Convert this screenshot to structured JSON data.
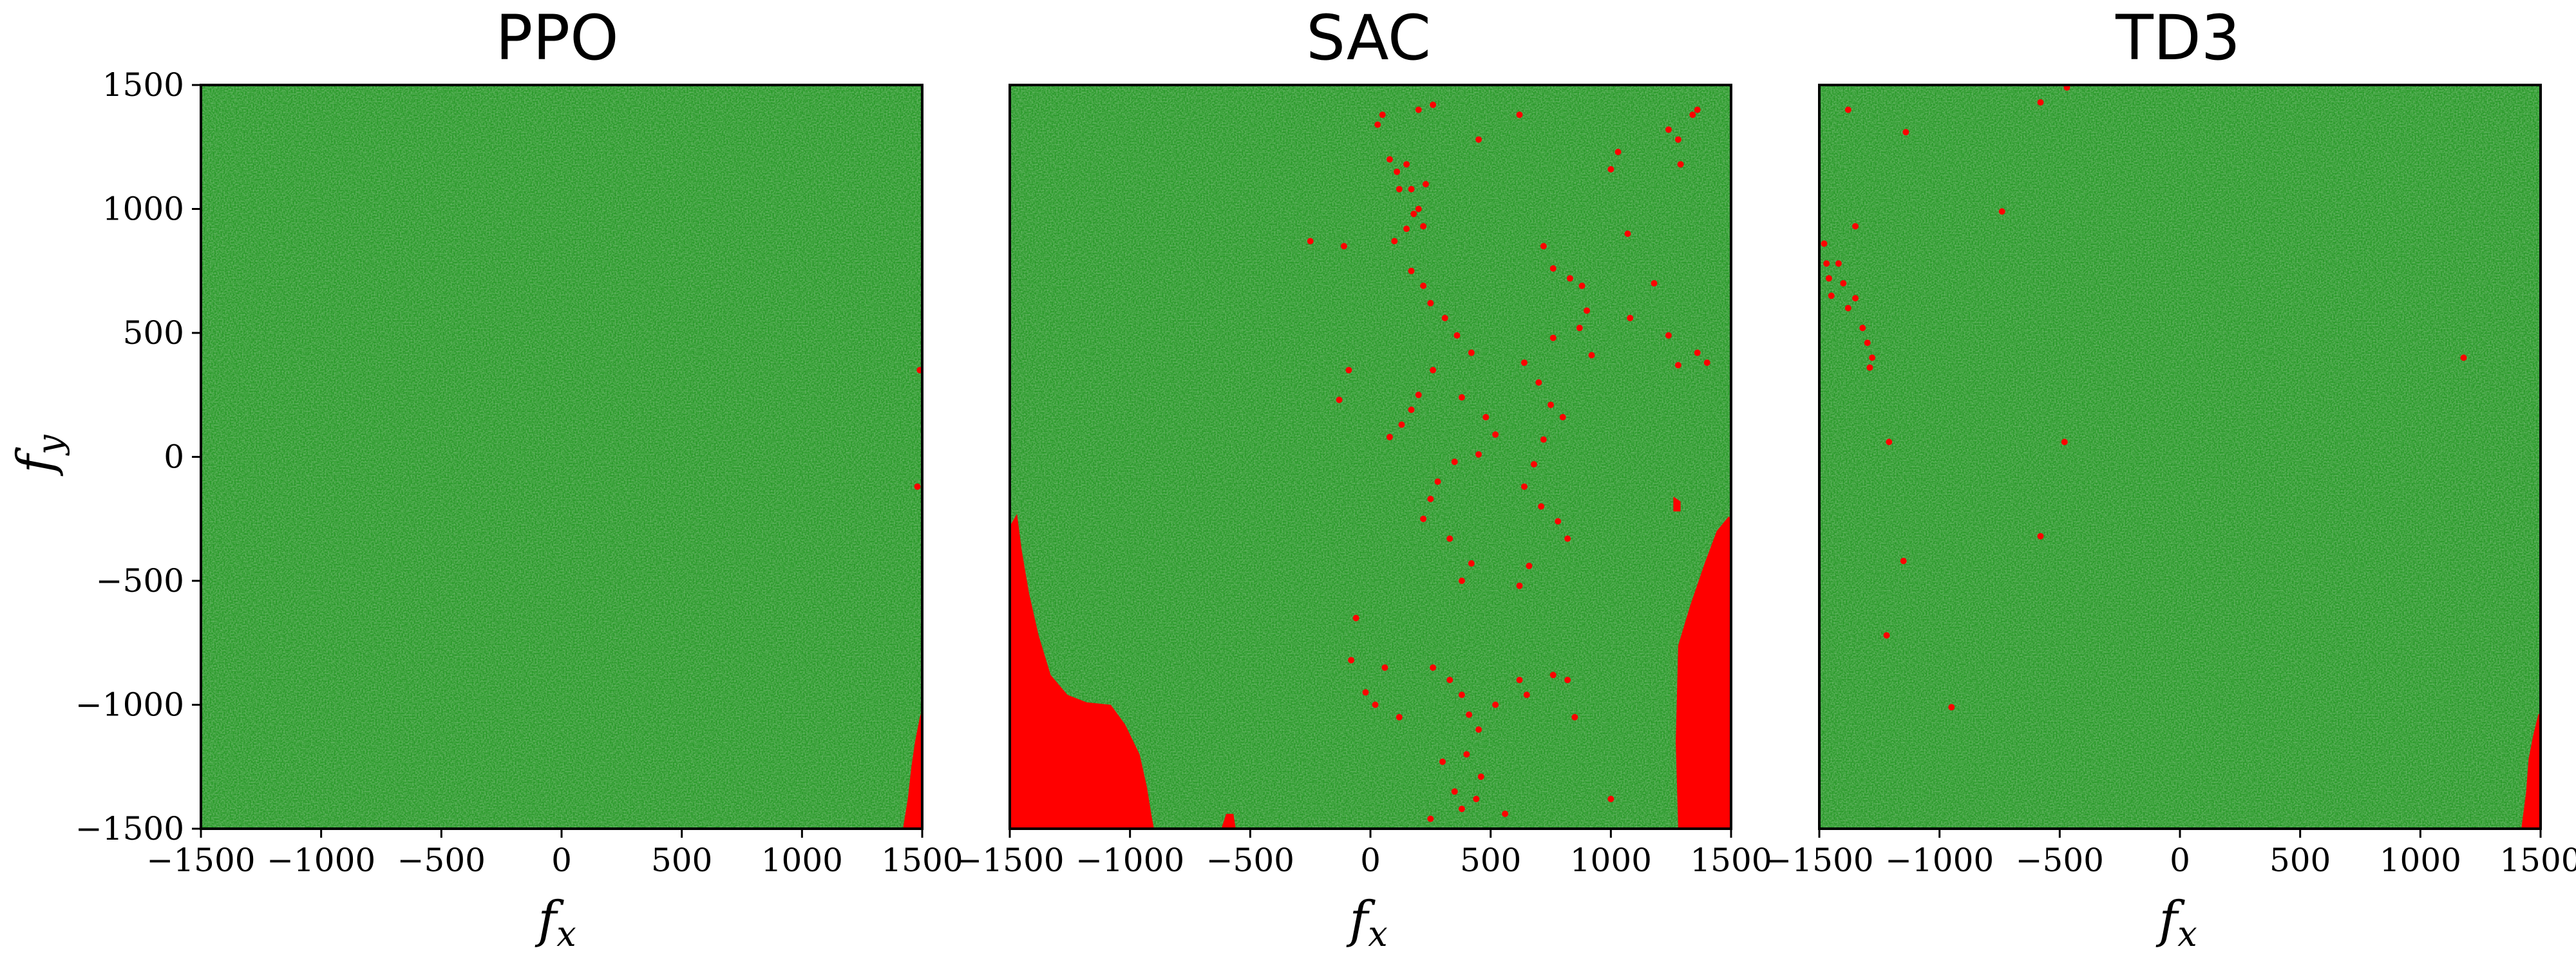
{
  "colors": {
    "success": "#2a9a2a",
    "failure": "#ff0000",
    "axis": "#000000"
  },
  "chart_data": [
    {
      "type": "scatter",
      "title": "PPO",
      "xlabel": "f_x",
      "ylabel": "f_y",
      "xlim": [
        -1500,
        1500
      ],
      "ylim": [
        -1500,
        1500
      ],
      "xticks": [
        "−1500",
        "−1000",
        "−500",
        "0",
        "500",
        "1000",
        "1500"
      ],
      "yticks": [
        "−1500",
        "−1000",
        "−500",
        "0",
        "500",
        "1000",
        "1500"
      ],
      "grid": false,
      "failure_regions": [
        [
          [
            1420,
            -1500
          ],
          [
            1440,
            -1380
          ],
          [
            1455,
            -1250
          ],
          [
            1470,
            -1150
          ],
          [
            1490,
            -1050
          ],
          [
            1500,
            -1020
          ],
          [
            1500,
            -1500
          ]
        ]
      ],
      "failure_points": [
        [
          1490,
          350
        ],
        [
          1480,
          -120
        ]
      ]
    },
    {
      "type": "scatter",
      "title": "SAC",
      "xlabel": "f_x",
      "ylabel": "",
      "xlim": [
        -1500,
        1500
      ],
      "ylim": [
        -1500,
        1500
      ],
      "xticks": [
        "−1500",
        "−1000",
        "−500",
        "0",
        "500",
        "1000",
        "1500"
      ],
      "yticks": [],
      "grid": false,
      "failure_regions": [
        [
          [
            -1500,
            -1500
          ],
          [
            -1500,
            -280
          ],
          [
            -1470,
            -230
          ],
          [
            -1450,
            -380
          ],
          [
            -1420,
            -550
          ],
          [
            -1380,
            -720
          ],
          [
            -1330,
            -880
          ],
          [
            -1260,
            -960
          ],
          [
            -1180,
            -990
          ],
          [
            -1080,
            -1000
          ],
          [
            -1020,
            -1080
          ],
          [
            -960,
            -1200
          ],
          [
            -930,
            -1330
          ],
          [
            -910,
            -1450
          ],
          [
            -900,
            -1500
          ]
        ],
        [
          [
            1280,
            -1500
          ],
          [
            1270,
            -1150
          ],
          [
            1280,
            -760
          ],
          [
            1330,
            -600
          ],
          [
            1390,
            -430
          ],
          [
            1440,
            -300
          ],
          [
            1490,
            -240
          ],
          [
            1500,
            -250
          ],
          [
            1500,
            -1500
          ]
        ],
        [
          [
            -620,
            -1500
          ],
          [
            -600,
            -1440
          ],
          [
            -570,
            -1440
          ],
          [
            -560,
            -1500
          ]
        ],
        [
          [
            1260,
            -160
          ],
          [
            1290,
            -180
          ],
          [
            1290,
            -220
          ],
          [
            1260,
            -220
          ]
        ]
      ],
      "failure_points": [
        [
          50,
          1380
        ],
        [
          30,
          1340
        ],
        [
          200,
          1400
        ],
        [
          260,
          1420
        ],
        [
          450,
          1280
        ],
        [
          620,
          1380
        ],
        [
          1240,
          1320
        ],
        [
          1280,
          1280
        ],
        [
          1290,
          1180
        ],
        [
          1340,
          1380
        ],
        [
          1360,
          1400
        ],
        [
          80,
          1200
        ],
        [
          110,
          1150
        ],
        [
          150,
          1180
        ],
        [
          170,
          1080
        ],
        [
          120,
          1080
        ],
        [
          180,
          980
        ],
        [
          220,
          930
        ],
        [
          150,
          920
        ],
        [
          100,
          870
        ],
        [
          200,
          1000
        ],
        [
          230,
          1100
        ],
        [
          -250,
          870
        ],
        [
          -110,
          850
        ],
        [
          170,
          750
        ],
        [
          220,
          690
        ],
        [
          250,
          620
        ],
        [
          310,
          560
        ],
        [
          360,
          490
        ],
        [
          420,
          420
        ],
        [
          260,
          350
        ],
        [
          200,
          250
        ],
        [
          170,
          190
        ],
        [
          130,
          130
        ],
        [
          80,
          80
        ],
        [
          -90,
          350
        ],
        [
          -130,
          230
        ],
        [
          380,
          240
        ],
        [
          480,
          160
        ],
        [
          520,
          90
        ],
        [
          450,
          10
        ],
        [
          350,
          -20
        ],
        [
          280,
          -100
        ],
        [
          250,
          -170
        ],
        [
          220,
          -250
        ],
        [
          330,
          -330
        ],
        [
          420,
          -430
        ],
        [
          380,
          -500
        ],
        [
          640,
          380
        ],
        [
          700,
          300
        ],
        [
          750,
          210
        ],
        [
          800,
          160
        ],
        [
          720,
          70
        ],
        [
          680,
          -30
        ],
        [
          640,
          -120
        ],
        [
          710,
          -200
        ],
        [
          780,
          -260
        ],
        [
          820,
          -330
        ],
        [
          660,
          -440
        ],
        [
          620,
          -520
        ],
        [
          720,
          850
        ],
        [
          760,
          760
        ],
        [
          830,
          720
        ],
        [
          880,
          690
        ],
        [
          900,
          590
        ],
        [
          870,
          520
        ],
        [
          760,
          480
        ],
        [
          920,
          410
        ],
        [
          1000,
          1160
        ],
        [
          1030,
          1230
        ],
        [
          1070,
          900
        ],
        [
          1080,
          560
        ],
        [
          1180,
          700
        ],
        [
          1240,
          490
        ],
        [
          1280,
          370
        ],
        [
          1360,
          420
        ],
        [
          1400,
          380
        ],
        [
          -60,
          -650
        ],
        [
          -80,
          -820
        ],
        [
          -20,
          -950
        ],
        [
          20,
          -1000
        ],
        [
          60,
          -850
        ],
        [
          120,
          -1050
        ],
        [
          260,
          -850
        ],
        [
          330,
          -900
        ],
        [
          380,
          -960
        ],
        [
          410,
          -1040
        ],
        [
          450,
          -1100
        ],
        [
          400,
          -1200
        ],
        [
          460,
          -1290
        ],
        [
          350,
          -1350
        ],
        [
          250,
          -1460
        ],
        [
          380,
          -1420
        ],
        [
          560,
          -1440
        ],
        [
          440,
          -1380
        ],
        [
          520,
          -1000
        ],
        [
          620,
          -900
        ],
        [
          650,
          -960
        ],
        [
          760,
          -880
        ],
        [
          820,
          -900
        ],
        [
          850,
          -1050
        ],
        [
          1000,
          -1380
        ],
        [
          300,
          -1230
        ]
      ]
    },
    {
      "type": "scatter",
      "title": "TD3",
      "xlabel": "f_x",
      "ylabel": "",
      "xlim": [
        -1500,
        1500
      ],
      "ylim": [
        -1500,
        1500
      ],
      "xticks": [
        "−1500",
        "−1000",
        "−500",
        "0",
        "500",
        "1000",
        "1500"
      ],
      "yticks": [],
      "grid": false,
      "failure_regions": [
        [
          [
            1420,
            -1500
          ],
          [
            1440,
            -1350
          ],
          [
            1450,
            -1220
          ],
          [
            1470,
            -1120
          ],
          [
            1490,
            -1040
          ],
          [
            1500,
            -1030
          ],
          [
            1500,
            -1500
          ]
        ]
      ],
      "failure_points": [
        [
          -1480,
          860
        ],
        [
          -1470,
          780
        ],
        [
          -1460,
          720
        ],
        [
          -1450,
          650
        ],
        [
          -1420,
          780
        ],
        [
          -1400,
          700
        ],
        [
          -1380,
          600
        ],
        [
          -1350,
          640
        ],
        [
          -1320,
          520
        ],
        [
          -1300,
          460
        ],
        [
          -1290,
          360
        ],
        [
          -1280,
          400
        ],
        [
          -1350,
          930
        ],
        [
          -1380,
          1400
        ],
        [
          -1140,
          1310
        ],
        [
          -1210,
          60
        ],
        [
          -1150,
          -420
        ],
        [
          -1220,
          -720
        ],
        [
          -950,
          -1010
        ],
        [
          -740,
          990
        ],
        [
          -580,
          1430
        ],
        [
          -470,
          1490
        ],
        [
          -580,
          -320
        ],
        [
          -480,
          60
        ],
        [
          1180,
          400
        ]
      ]
    }
  ]
}
